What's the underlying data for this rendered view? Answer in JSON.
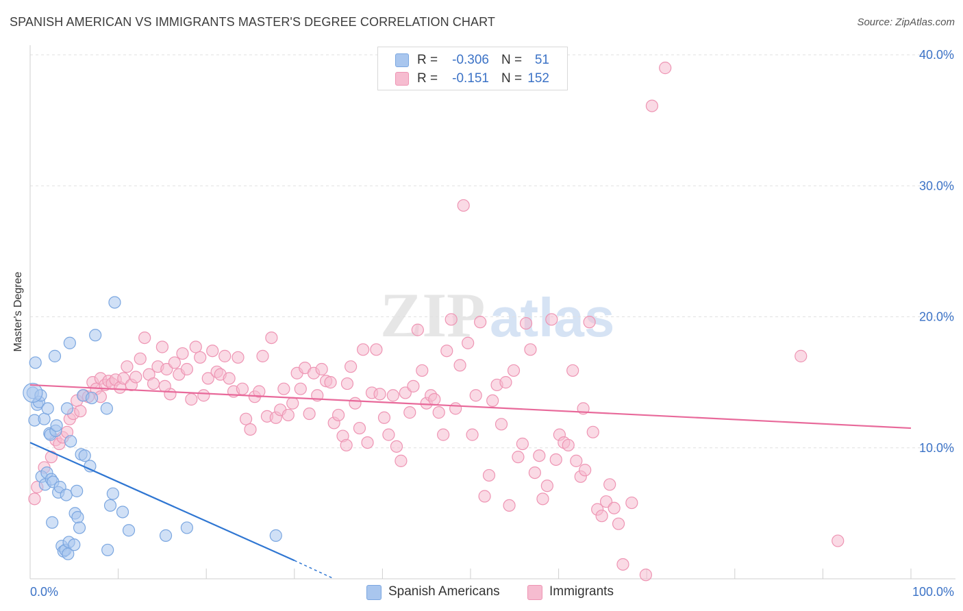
{
  "header": {
    "title": "SPANISH AMERICAN VS IMMIGRANTS MASTER'S DEGREE CORRELATION CHART",
    "source": "Source: ZipAtlas.com"
  },
  "watermark": {
    "zip": "ZIP",
    "atlas": "atlas"
  },
  "legend": {
    "rows": [
      {
        "r_label": "R =",
        "r_value": "-0.306",
        "n_label": "N =",
        "n_value": "51"
      },
      {
        "r_label": "R =",
        "r_value": "-0.151",
        "n_label": "N =",
        "n_value": "152"
      }
    ],
    "bottom": [
      {
        "label": "Spanish Americans"
      },
      {
        "label": "Immigrants"
      }
    ]
  },
  "colors": {
    "blue_fill": "#a9c6ee",
    "blue_stroke": "#7aa6e0",
    "blue_line": "#2f76d2",
    "pink_fill": "#f6bcd0",
    "pink_stroke": "#ee94b3",
    "pink_line": "#e8699a",
    "tick_text": "#3b72c6",
    "grid": "#e0e0e0"
  },
  "chart_data": {
    "type": "scatter",
    "title": "SPANISH AMERICAN VS IMMIGRANTS MASTER'S DEGREE CORRELATION CHART",
    "xlabel": "",
    "ylabel": "Master's Degree",
    "xlim": [
      0,
      100
    ],
    "ylim": [
      0,
      40
    ],
    "x_tick_labels": [
      "0.0%",
      "100.0%"
    ],
    "y_ticks": [
      10,
      20,
      30,
      40
    ],
    "y_tick_labels": [
      "10.0%",
      "20.0%",
      "30.0%",
      "40.0%"
    ],
    "grid": true,
    "series": [
      {
        "name": "Spanish Americans",
        "trend": {
          "x": [
            0,
            30
          ],
          "y": [
            10.4,
            1.4
          ],
          "dashed_to": [
            34.5,
            0
          ]
        },
        "points": [
          [
            0.3,
            14.2
          ],
          [
            0.5,
            12.1
          ],
          [
            0.6,
            16.5
          ],
          [
            0.8,
            13.3
          ],
          [
            1.0,
            13.5
          ],
          [
            1.2,
            14.0
          ],
          [
            1.3,
            7.8
          ],
          [
            1.6,
            12.2
          ],
          [
            1.7,
            7.2
          ],
          [
            1.9,
            8.1
          ],
          [
            2.0,
            13.0
          ],
          [
            2.2,
            11.1
          ],
          [
            2.3,
            11.0
          ],
          [
            2.4,
            7.6
          ],
          [
            2.5,
            4.3
          ],
          [
            2.6,
            7.4
          ],
          [
            2.8,
            17.0
          ],
          [
            2.9,
            11.3
          ],
          [
            3.0,
            11.7
          ],
          [
            3.2,
            6.6
          ],
          [
            3.4,
            7.0
          ],
          [
            3.6,
            2.5
          ],
          [
            3.8,
            2.1
          ],
          [
            4.0,
            2.2
          ],
          [
            4.1,
            6.4
          ],
          [
            4.2,
            13.0
          ],
          [
            4.3,
            1.9
          ],
          [
            4.4,
            2.8
          ],
          [
            4.5,
            18.0
          ],
          [
            4.6,
            10.5
          ],
          [
            5.0,
            2.6
          ],
          [
            5.1,
            5.0
          ],
          [
            5.3,
            6.7
          ],
          [
            5.4,
            4.7
          ],
          [
            5.6,
            3.9
          ],
          [
            5.8,
            9.5
          ],
          [
            6.0,
            14.0
          ],
          [
            6.2,
            9.4
          ],
          [
            6.8,
            8.6
          ],
          [
            7.0,
            13.8
          ],
          [
            7.4,
            18.6
          ],
          [
            8.7,
            13.0
          ],
          [
            8.8,
            2.2
          ],
          [
            9.1,
            5.6
          ],
          [
            9.4,
            6.5
          ],
          [
            9.6,
            21.1
          ],
          [
            10.5,
            5.1
          ],
          [
            11.2,
            3.7
          ],
          [
            15.4,
            3.3
          ],
          [
            17.8,
            3.9
          ],
          [
            27.9,
            3.3
          ]
        ]
      },
      {
        "name": "Immigrants",
        "trend": {
          "x": [
            0,
            100
          ],
          "y": [
            14.8,
            11.5
          ]
        },
        "points": [
          [
            0.5,
            6.1
          ],
          [
            0.8,
            7.0
          ],
          [
            1.6,
            8.5
          ],
          [
            2.4,
            9.3
          ],
          [
            2.9,
            10.6
          ],
          [
            3.3,
            10.3
          ],
          [
            3.7,
            10.8
          ],
          [
            4.2,
            11.2
          ],
          [
            4.5,
            12.2
          ],
          [
            4.9,
            12.6
          ],
          [
            5.3,
            13.6
          ],
          [
            5.7,
            12.8
          ],
          [
            6.1,
            14.0
          ],
          [
            6.6,
            13.9
          ],
          [
            7.1,
            15.0
          ],
          [
            7.5,
            14.5
          ],
          [
            8.0,
            15.3
          ],
          [
            8.5,
            14.8
          ],
          [
            8.9,
            15.1
          ],
          [
            9.3,
            14.9
          ],
          [
            9.7,
            15.2
          ],
          [
            10.2,
            14.6
          ],
          [
            10.6,
            15.3
          ],
          [
            11.0,
            16.2
          ],
          [
            11.5,
            14.8
          ],
          [
            12.0,
            15.4
          ],
          [
            12.5,
            16.8
          ],
          [
            13.0,
            18.4
          ],
          [
            13.5,
            15.6
          ],
          [
            14.0,
            14.9
          ],
          [
            14.5,
            16.2
          ],
          [
            15.0,
            17.7
          ],
          [
            15.5,
            16.0
          ],
          [
            15.9,
            14.1
          ],
          [
            16.4,
            16.5
          ],
          [
            16.9,
            15.6
          ],
          [
            17.3,
            17.2
          ],
          [
            17.8,
            16.0
          ],
          [
            18.3,
            13.7
          ],
          [
            18.8,
            17.7
          ],
          [
            19.3,
            16.9
          ],
          [
            19.7,
            14.0
          ],
          [
            20.2,
            15.3
          ],
          [
            20.7,
            17.4
          ],
          [
            21.2,
            15.8
          ],
          [
            21.6,
            15.6
          ],
          [
            22.1,
            17.0
          ],
          [
            22.6,
            15.3
          ],
          [
            23.1,
            14.3
          ],
          [
            23.6,
            16.9
          ],
          [
            24.1,
            14.5
          ],
          [
            24.5,
            12.2
          ],
          [
            25.0,
            11.4
          ],
          [
            25.5,
            13.9
          ],
          [
            26.0,
            14.3
          ],
          [
            26.4,
            17.0
          ],
          [
            26.9,
            12.4
          ],
          [
            27.4,
            18.4
          ],
          [
            27.9,
            12.3
          ],
          [
            28.4,
            12.9
          ],
          [
            28.8,
            14.5
          ],
          [
            29.3,
            12.5
          ],
          [
            29.8,
            13.4
          ],
          [
            30.3,
            15.7
          ],
          [
            30.7,
            14.5
          ],
          [
            31.2,
            16.1
          ],
          [
            31.7,
            12.6
          ],
          [
            32.2,
            15.7
          ],
          [
            32.6,
            14.0
          ],
          [
            33.1,
            16.0
          ],
          [
            33.6,
            15.1
          ],
          [
            34.1,
            15.0
          ],
          [
            34.5,
            11.9
          ],
          [
            35.0,
            12.5
          ],
          [
            35.5,
            10.9
          ],
          [
            35.9,
            10.2
          ],
          [
            36.4,
            16.2
          ],
          [
            36.9,
            13.4
          ],
          [
            37.4,
            11.5
          ],
          [
            37.8,
            17.5
          ],
          [
            38.3,
            10.4
          ],
          [
            38.8,
            14.2
          ],
          [
            39.3,
            17.5
          ],
          [
            39.7,
            14.1
          ],
          [
            40.2,
            12.3
          ],
          [
            40.7,
            11.0
          ],
          [
            41.2,
            14.0
          ],
          [
            41.6,
            10.1
          ],
          [
            42.1,
            9.0
          ],
          [
            42.6,
            14.2
          ],
          [
            43.1,
            12.7
          ],
          [
            43.5,
            14.7
          ],
          [
            44.0,
            19.0
          ],
          [
            44.5,
            15.9
          ],
          [
            45.0,
            13.4
          ],
          [
            45.5,
            14.0
          ],
          [
            45.9,
            13.7
          ],
          [
            46.4,
            12.7
          ],
          [
            46.9,
            11.0
          ],
          [
            47.3,
            17.4
          ],
          [
            47.8,
            19.8
          ],
          [
            48.3,
            13.0
          ],
          [
            48.8,
            16.3
          ],
          [
            49.2,
            28.5
          ],
          [
            49.7,
            18.0
          ],
          [
            50.2,
            11.0
          ],
          [
            50.6,
            14.0
          ],
          [
            51.1,
            19.6
          ],
          [
            51.6,
            6.3
          ],
          [
            52.1,
            7.9
          ],
          [
            52.5,
            13.6
          ],
          [
            53.0,
            14.8
          ],
          [
            53.5,
            11.8
          ],
          [
            54.0,
            15.0
          ],
          [
            54.4,
            5.6
          ],
          [
            54.9,
            15.9
          ],
          [
            55.4,
            9.3
          ],
          [
            55.9,
            10.3
          ],
          [
            56.3,
            19.5
          ],
          [
            56.8,
            17.5
          ],
          [
            57.3,
            8.1
          ],
          [
            57.8,
            9.4
          ],
          [
            58.2,
            6.1
          ],
          [
            58.7,
            7.1
          ],
          [
            59.2,
            19.8
          ],
          [
            59.7,
            9.1
          ],
          [
            60.1,
            11.0
          ],
          [
            60.6,
            10.4
          ],
          [
            61.1,
            10.2
          ],
          [
            61.6,
            15.9
          ],
          [
            62.0,
            9.0
          ],
          [
            62.5,
            7.8
          ],
          [
            63.0,
            8.3
          ],
          [
            63.5,
            19.6
          ],
          [
            63.9,
            11.2
          ],
          [
            64.4,
            5.3
          ],
          [
            64.9,
            4.8
          ],
          [
            65.4,
            5.9
          ],
          [
            65.8,
            7.2
          ],
          [
            66.3,
            5.4
          ],
          [
            66.8,
            4.2
          ],
          [
            67.3,
            1.1
          ],
          [
            68.3,
            5.8
          ],
          [
            70.6,
            36.1
          ],
          [
            72.1,
            39.0
          ],
          [
            87.5,
            17.0
          ],
          [
            91.7,
            2.9
          ],
          [
            69.9,
            0.3
          ],
          [
            62.8,
            13.0
          ],
          [
            36.0,
            14.9
          ],
          [
            15.3,
            14.7
          ],
          [
            8.0,
            13.9
          ]
        ]
      }
    ]
  }
}
